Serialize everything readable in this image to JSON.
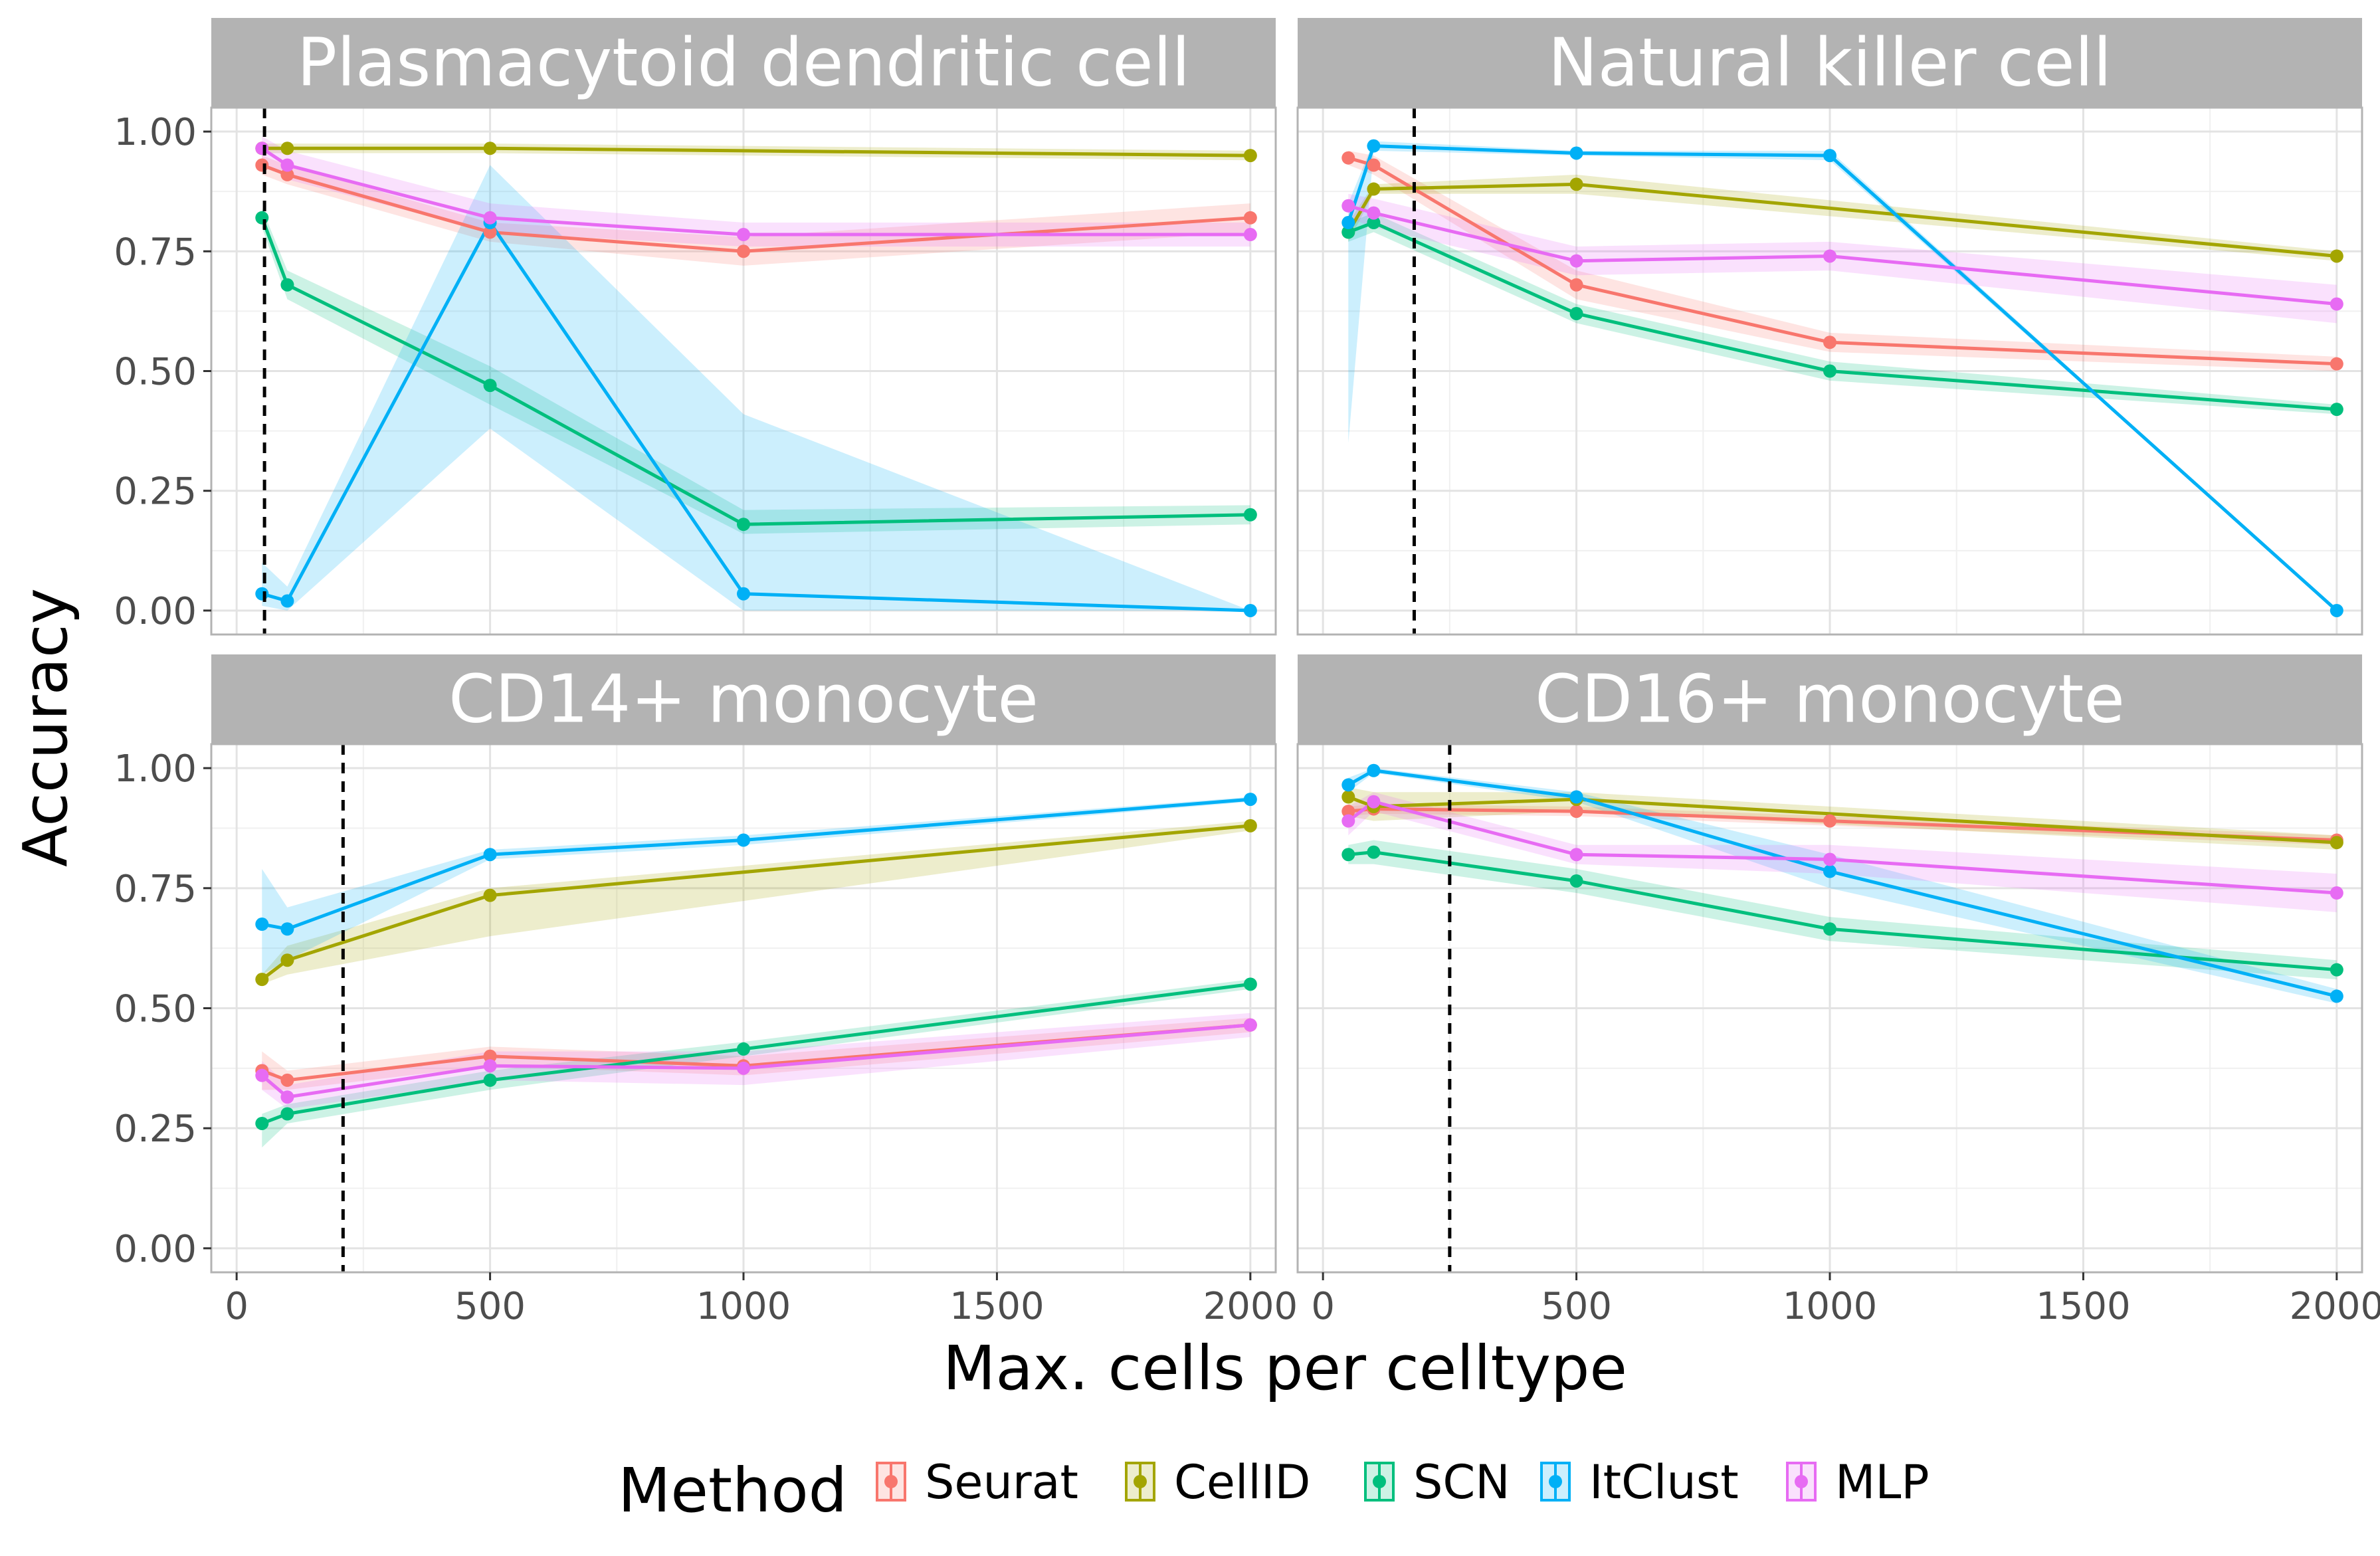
{
  "chart_data": {
    "type": "line",
    "xlabel": "Max. cells per celltype",
    "ylabel": "Accuracy",
    "xlim": [
      -50,
      2050
    ],
    "ylim": [
      -0.05,
      1.05
    ],
    "x_ticks": [
      "0",
      "500",
      "1000",
      "1500",
      "2000"
    ],
    "y_ticks": [
      "0.00",
      "0.25",
      "0.50",
      "0.75",
      "1.00"
    ],
    "grid": true,
    "legend": {
      "title": "Method",
      "position": "bottom",
      "entries": [
        "Seurat",
        "CellID",
        "SCN",
        "ItClust",
        "MLP"
      ]
    },
    "colors": {
      "Seurat": "#F8766D",
      "CellID": "#A3A500",
      "SCN": "#00BF7D",
      "ItClust": "#00B0F6",
      "MLP": "#E76BF3"
    },
    "panels": [
      {
        "title": "Plasmacytoid dendritic cell",
        "vline": 55,
        "series": [
          {
            "name": "Seurat",
            "x": [
              50,
              100,
              500,
              1000,
              2000
            ],
            "y": [
              0.93,
              0.91,
              0.79,
              0.75,
              0.82
            ],
            "lo": [
              0.91,
              0.89,
              0.77,
              0.72,
              0.79
            ],
            "hi": [
              0.95,
              0.93,
              0.81,
              0.78,
              0.85
            ]
          },
          {
            "name": "CellID",
            "x": [
              50,
              100,
              500,
              2000
            ],
            "y": [
              0.965,
              0.965,
              0.965,
              0.95
            ],
            "lo": [
              0.955,
              0.955,
              0.955,
              0.94
            ],
            "hi": [
              0.975,
              0.975,
              0.975,
              0.96
            ]
          },
          {
            "name": "SCN",
            "x": [
              50,
              100,
              500,
              1000,
              2000
            ],
            "y": [
              0.82,
              0.68,
              0.47,
              0.18,
              0.2
            ],
            "lo": [
              0.8,
              0.65,
              0.43,
              0.16,
              0.18
            ],
            "hi": [
              0.84,
              0.71,
              0.51,
              0.21,
              0.22
            ]
          },
          {
            "name": "ItClust",
            "x": [
              50,
              100,
              500,
              1000,
              2000
            ],
            "y": [
              0.035,
              0.02,
              0.81,
              0.035,
              0.0
            ],
            "lo": [
              0.01,
              0.0,
              0.38,
              0.0,
              0.0
            ],
            "hi": [
              0.1,
              0.05,
              0.93,
              0.41,
              0.0
            ]
          },
          {
            "name": "MLP",
            "x": [
              50,
              100,
              500,
              1000,
              2000
            ],
            "y": [
              0.965,
              0.93,
              0.82,
              0.785,
              0.785
            ],
            "lo": [
              0.94,
              0.9,
              0.79,
              0.76,
              0.76
            ],
            "hi": [
              0.99,
              0.96,
              0.85,
              0.81,
              0.81
            ]
          }
        ]
      },
      {
        "title": "Natural killer cell",
        "vline": 180,
        "series": [
          {
            "name": "Seurat",
            "x": [
              50,
              100,
              500,
              1000,
              2000
            ],
            "y": [
              0.945,
              0.93,
              0.68,
              0.56,
              0.515
            ],
            "lo": [
              0.93,
              0.91,
              0.65,
              0.54,
              0.5
            ],
            "hi": [
              0.96,
              0.95,
              0.71,
              0.58,
              0.53
            ]
          },
          {
            "name": "CellID",
            "x": [
              50,
              100,
              500,
              2000
            ],
            "y": [
              0.79,
              0.88,
              0.89,
              0.74
            ],
            "lo": [
              0.77,
              0.87,
              0.87,
              0.73
            ],
            "hi": [
              0.81,
              0.89,
              0.91,
              0.75
            ]
          },
          {
            "name": "SCN",
            "x": [
              50,
              100,
              500,
              1000,
              2000
            ],
            "y": [
              0.79,
              0.81,
              0.62,
              0.5,
              0.42
            ],
            "lo": [
              0.77,
              0.79,
              0.6,
              0.48,
              0.41
            ],
            "hi": [
              0.81,
              0.83,
              0.64,
              0.52,
              0.43
            ]
          },
          {
            "name": "ItClust",
            "x": [
              50,
              100,
              500,
              1000,
              2000
            ],
            "y": [
              0.81,
              0.97,
              0.955,
              0.95,
              0.0
            ],
            "lo": [
              0.35,
              0.96,
              0.95,
              0.94,
              0.0
            ],
            "hi": [
              0.85,
              0.98,
              0.96,
              0.96,
              0.0
            ]
          },
          {
            "name": "MLP",
            "x": [
              50,
              100,
              500,
              1000,
              2000
            ],
            "y": [
              0.845,
              0.83,
              0.73,
              0.74,
              0.64
            ],
            "lo": [
              0.82,
              0.8,
              0.7,
              0.71,
              0.6
            ],
            "hi": [
              0.87,
              0.86,
              0.76,
              0.77,
              0.68
            ]
          }
        ]
      },
      {
        "title": "CD14+ monocyte",
        "vline": 210,
        "series": [
          {
            "name": "Seurat",
            "x": [
              50,
              100,
              500,
              1000,
              2000
            ],
            "y": [
              0.37,
              0.35,
              0.4,
              0.38,
              0.465
            ],
            "lo": [
              0.33,
              0.33,
              0.38,
              0.36,
              0.45
            ],
            "hi": [
              0.41,
              0.37,
              0.42,
              0.4,
              0.48
            ]
          },
          {
            "name": "CellID",
            "x": [
              50,
              100,
              500,
              2000
            ],
            "y": [
              0.56,
              0.6,
              0.735,
              0.88
            ],
            "lo": [
              0.55,
              0.57,
              0.65,
              0.87
            ],
            "hi": [
              0.57,
              0.63,
              0.75,
              0.89
            ]
          },
          {
            "name": "SCN",
            "x": [
              50,
              100,
              500,
              1000,
              2000
            ],
            "y": [
              0.26,
              0.28,
              0.35,
              0.415,
              0.55
            ],
            "lo": [
              0.21,
              0.26,
              0.33,
              0.4,
              0.54
            ],
            "hi": [
              0.28,
              0.3,
              0.37,
              0.43,
              0.56
            ]
          },
          {
            "name": "ItClust",
            "x": [
              50,
              100,
              500,
              1000,
              2000
            ],
            "y": [
              0.675,
              0.665,
              0.82,
              0.85,
              0.935
            ],
            "lo": [
              0.57,
              0.6,
              0.81,
              0.84,
              0.93
            ],
            "hi": [
              0.79,
              0.71,
              0.83,
              0.86,
              0.94
            ]
          },
          {
            "name": "MLP",
            "x": [
              50,
              100,
              500,
              1000,
              2000
            ],
            "y": [
              0.36,
              0.315,
              0.38,
              0.375,
              0.465
            ],
            "lo": [
              0.33,
              0.29,
              0.35,
              0.34,
              0.44
            ],
            "hi": [
              0.39,
              0.34,
              0.41,
              0.41,
              0.49
            ]
          }
        ]
      },
      {
        "title": "CD16+ monocyte",
        "vline": 250,
        "series": [
          {
            "name": "Seurat",
            "x": [
              50,
              100,
              500,
              1000,
              2000
            ],
            "y": [
              0.91,
              0.915,
              0.91,
              0.89,
              0.85
            ],
            "lo": [
              0.9,
              0.905,
              0.9,
              0.88,
              0.84
            ],
            "hi": [
              0.92,
              0.925,
              0.92,
              0.9,
              0.86
            ]
          },
          {
            "name": "CellID",
            "x": [
              50,
              100,
              500,
              2000
            ],
            "y": [
              0.94,
              0.92,
              0.935,
              0.845
            ],
            "lo": [
              0.9,
              0.89,
              0.91,
              0.83
            ],
            "hi": [
              0.96,
              0.95,
              0.95,
              0.86
            ]
          },
          {
            "name": "SCN",
            "x": [
              50,
              100,
              500,
              1000,
              2000
            ],
            "y": [
              0.82,
              0.825,
              0.765,
              0.665,
              0.58
            ],
            "lo": [
              0.8,
              0.8,
              0.74,
              0.64,
              0.56
            ],
            "hi": [
              0.84,
              0.85,
              0.79,
              0.69,
              0.6
            ]
          },
          {
            "name": "ItClust",
            "x": [
              50,
              100,
              500,
              1000,
              2000
            ],
            "y": [
              0.965,
              0.995,
              0.94,
              0.785,
              0.525
            ],
            "lo": [
              0.95,
              0.99,
              0.93,
              0.75,
              0.51
            ],
            "hi": [
              0.98,
              1.0,
              0.95,
              0.82,
              0.54
            ]
          },
          {
            "name": "MLP",
            "x": [
              50,
              100,
              500,
              1000,
              2000
            ],
            "y": [
              0.89,
              0.93,
              0.82,
              0.81,
              0.74
            ],
            "lo": [
              0.86,
              0.91,
              0.8,
              0.78,
              0.7
            ],
            "hi": [
              0.92,
              0.95,
              0.84,
              0.84,
              0.78
            ]
          }
        ]
      }
    ]
  }
}
